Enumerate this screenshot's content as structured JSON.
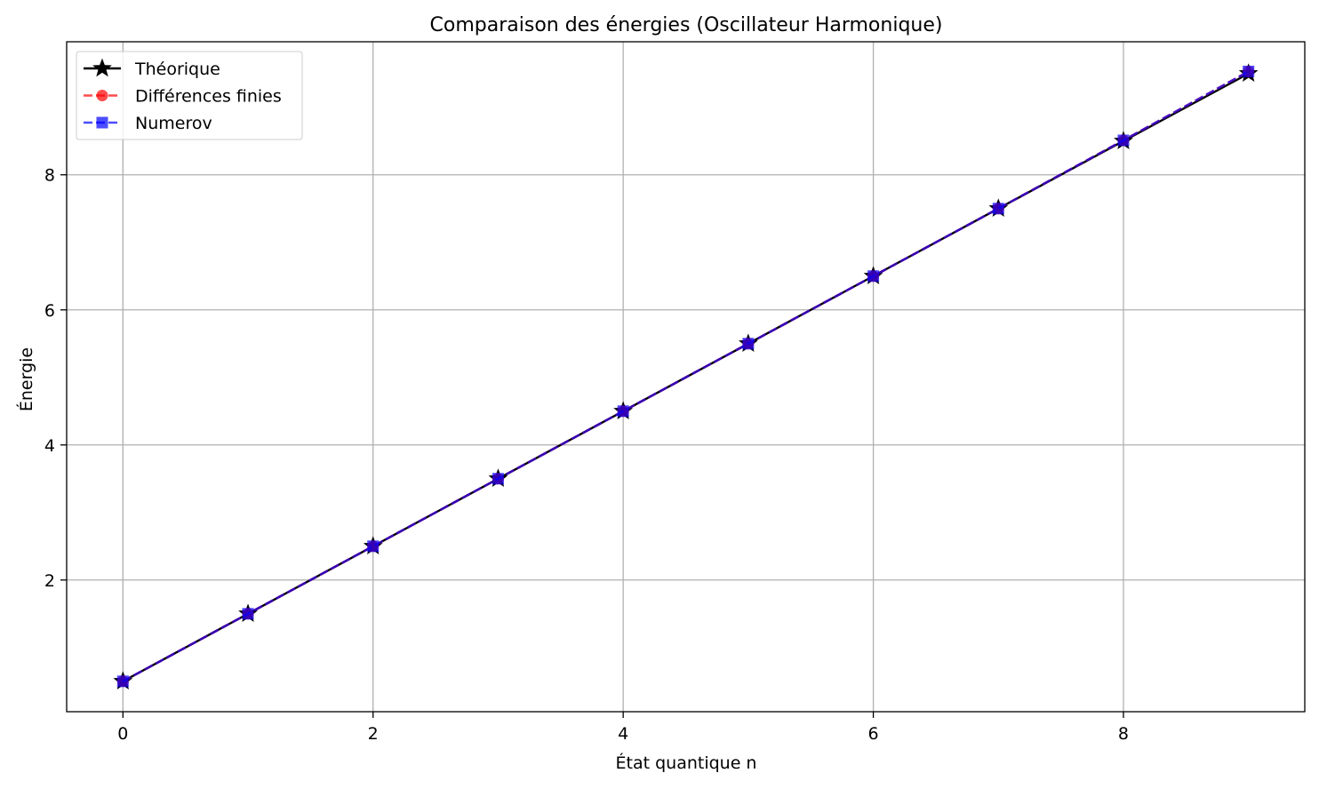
{
  "chart_data": {
    "type": "line",
    "title": "Comparaison des énergies (Oscillateur Harmonique)",
    "xlabel": "État quantique n",
    "ylabel": "Énergie",
    "xlim": [
      -0.45,
      9.45
    ],
    "ylim": [
      0.05,
      9.97
    ],
    "xticks": [
      0,
      2,
      4,
      6,
      8
    ],
    "yticks": [
      2,
      4,
      6,
      8
    ],
    "grid": true,
    "legend_position": "top-left",
    "x": [
      0,
      1,
      2,
      3,
      4,
      5,
      6,
      7,
      8,
      9
    ],
    "series": [
      {
        "name": "Théorique",
        "values": [
          0.5,
          1.5,
          2.5,
          3.5,
          4.5,
          5.5,
          6.5,
          7.5,
          8.5,
          9.5
        ],
        "color": "#000000",
        "style": "solid",
        "marker": "star"
      },
      {
        "name": "Différences finies",
        "values": [
          0.5,
          1.5,
          2.5,
          3.5,
          4.5,
          5.5,
          6.5,
          7.5,
          8.51,
          9.53
        ],
        "color": "#ff0000",
        "style": "dashed",
        "marker": "circle"
      },
      {
        "name": "Numerov",
        "values": [
          0.5,
          1.5,
          2.5,
          3.5,
          4.5,
          5.5,
          6.5,
          7.5,
          8.51,
          9.53
        ],
        "color": "#0000ff",
        "style": "dashed",
        "marker": "square"
      }
    ]
  }
}
